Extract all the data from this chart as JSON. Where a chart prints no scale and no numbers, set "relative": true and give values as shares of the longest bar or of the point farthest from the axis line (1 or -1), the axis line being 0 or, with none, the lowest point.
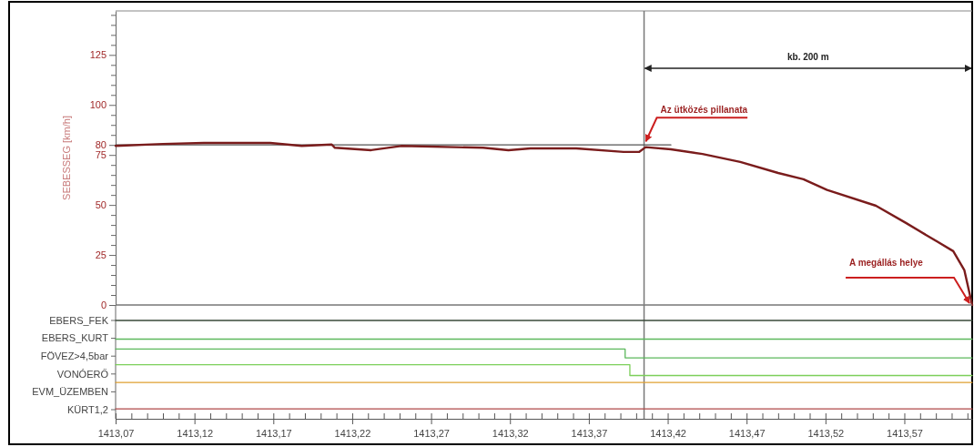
{
  "chart_data": [
    {
      "type": "line",
      "ylabel": "SEBESSEG [km/h]",
      "xlim": [
        1413.07,
        1413.613
      ],
      "ylim": [
        0,
        147
      ],
      "yticks": [
        0,
        {
          "value": 5,
          "label": null
        },
        {
          "value": 10,
          "label": null
        },
        {
          "value": 15,
          "label": null
        },
        {
          "value": 20,
          "label": null
        },
        25,
        {
          "value": 30,
          "label": null
        },
        {
          "value": 35,
          "label": null
        },
        {
          "value": 40,
          "label": null
        },
        {
          "value": 45,
          "label": null
        },
        50,
        {
          "value": 55,
          "label": null
        },
        {
          "value": 60,
          "label": null
        },
        {
          "value": 65,
          "label": null
        },
        {
          "value": 70,
          "label": null
        },
        75,
        80,
        {
          "value": 85,
          "label": null
        },
        {
          "value": 90,
          "label": null
        },
        {
          "value": 95,
          "label": null
        },
        100,
        {
          "value": 105,
          "label": null
        },
        {
          "value": 110,
          "label": null
        },
        {
          "value": 115,
          "label": null
        },
        {
          "value": 120,
          "label": null
        },
        125,
        {
          "value": 130,
          "label": null
        },
        {
          "value": 135,
          "label": null
        },
        {
          "value": 140,
          "label": null
        },
        {
          "value": 145,
          "label": null
        }
      ],
      "tick_labels": "y",
      "grid": false,
      "series": [
        {
          "color": "#555555",
          "x": [
            1413.07,
            1413.422
          ],
          "values": [
            80,
            80
          ]
        },
        {
          "color": "#7a1c1c",
          "x": [
            1413.07,
            1413.1,
            1413.126,
            1413.168,
            1413.188,
            1413.207,
            1413.209,
            1413.232,
            1413.251,
            1413.303,
            1413.319,
            1413.333,
            1413.362,
            1413.392,
            1413.402,
            1413.406,
            1413.422,
            1413.442,
            1413.466,
            1413.49,
            1413.506,
            1413.521,
            1413.552,
            1413.571,
            1413.591,
            1413.601,
            1413.608,
            1413.613
          ],
          "values": [
            79.5,
            80.5,
            81,
            81,
            79.5,
            80.2,
            78.6,
            77.4,
            79.5,
            78.6,
            77.4,
            78.3,
            78.3,
            76.5,
            76.6,
            78.9,
            77.8,
            75.5,
            71.5,
            66,
            62.9,
            57.5,
            49.6,
            41,
            31.6,
            26.9,
            17.5,
            0
          ]
        }
      ],
      "ref_lines": [
        {
          "axis": "x",
          "value": 1413.405,
          "color": "#777777"
        }
      ],
      "annotations": [
        "kb. 200 m",
        {
          "text": "Az ütközés pillanata",
          "x": 1413.405,
          "y": 80
        },
        {
          "text": "A megállás helye",
          "x": 1413.613,
          "y": 0
        }
      ]
    },
    {
      "type": "step",
      "xlim": [
        1413.07,
        1413.613
      ],
      "relative": true,
      "xticks": [
        {
          "value": 1413.07,
          "label": "1413,07"
        },
        {
          "value": 1413.08,
          "label": null
        },
        {
          "value": 1413.09,
          "label": null
        },
        {
          "value": 1413.1,
          "label": null
        },
        {
          "value": 1413.11,
          "label": null
        },
        {
          "value": 1413.12,
          "label": "1413,12"
        },
        {
          "value": 1413.13,
          "label": null
        },
        {
          "value": 1413.14,
          "label": null
        },
        {
          "value": 1413.15,
          "label": null
        },
        {
          "value": 1413.16,
          "label": null
        },
        {
          "value": 1413.17,
          "label": "1413,17"
        },
        {
          "value": 1413.18,
          "label": null
        },
        {
          "value": 1413.19,
          "label": null
        },
        {
          "value": 1413.2,
          "label": null
        },
        {
          "value": 1413.21,
          "label": null
        },
        {
          "value": 1413.22,
          "label": "1413,22"
        },
        {
          "value": 1413.23,
          "label": null
        },
        {
          "value": 1413.24,
          "label": null
        },
        {
          "value": 1413.25,
          "label": null
        },
        {
          "value": 1413.26,
          "label": null
        },
        {
          "value": 1413.27,
          "label": "1413,27"
        },
        {
          "value": 1413.28,
          "label": null
        },
        {
          "value": 1413.29,
          "label": null
        },
        {
          "value": 1413.3,
          "label": null
        },
        {
          "value": 1413.31,
          "label": null
        },
        {
          "value": 1413.32,
          "label": "1413,32"
        },
        {
          "value": 1413.33,
          "label": null
        },
        {
          "value": 1413.34,
          "label": null
        },
        {
          "value": 1413.35,
          "label": null
        },
        {
          "value": 1413.36,
          "label": null
        },
        {
          "value": 1413.37,
          "label": "1413,37"
        },
        {
          "value": 1413.38,
          "label": null
        },
        {
          "value": 1413.39,
          "label": null
        },
        {
          "value": 1413.4,
          "label": null
        },
        {
          "value": 1413.41,
          "label": null
        },
        {
          "value": 1413.42,
          "label": "1413,42"
        },
        {
          "value": 1413.43,
          "label": null
        },
        {
          "value": 1413.44,
          "label": null
        },
        {
          "value": 1413.45,
          "label": null
        },
        {
          "value": 1413.46,
          "label": null
        },
        {
          "value": 1413.47,
          "label": "1413,47"
        },
        {
          "value": 1413.48,
          "label": null
        },
        {
          "value": 1413.49,
          "label": null
        },
        {
          "value": 1413.5,
          "label": null
        },
        {
          "value": 1413.51,
          "label": null
        },
        {
          "value": 1413.52,
          "label": "1413,52"
        },
        {
          "value": 1413.53,
          "label": null
        },
        {
          "value": 1413.54,
          "label": null
        },
        {
          "value": 1413.55,
          "label": null
        },
        {
          "value": 1413.56,
          "label": null
        },
        {
          "value": 1413.57,
          "label": "1413,57"
        },
        {
          "value": 1413.58,
          "label": null
        },
        {
          "value": 1413.59,
          "label": null
        },
        {
          "value": 1413.6,
          "label": null
        },
        {
          "value": 1413.61,
          "label": null
        }
      ],
      "grid": false,
      "series": [
        {
          "name": "EBERS_FEK",
          "color": "#3a4a3a",
          "x": [
            1413.07,
            1413.613
          ],
          "values": [
            1,
            1
          ]
        },
        {
          "name": "EBERS_KURT",
          "color": "#5cb85c",
          "x": [
            1413.07,
            1413.613
          ],
          "values": [
            0.81,
            0.81
          ]
        },
        {
          "name": "FÖVEZ>4,5bar",
          "color": "#5cb85c",
          "x": [
            1413.07,
            1413.393,
            1413.613
          ],
          "values": [
            0.71,
            0.62,
            0.62
          ]
        },
        {
          "name": "VONÓERŐ",
          "color": "#7ccf5a",
          "x": [
            1413.07,
            1413.396,
            1413.613
          ],
          "values": [
            0.55,
            0.44,
            0.44
          ]
        },
        {
          "name": "EVM_ÜZEMBEN",
          "color": "#e0a030",
          "x": [
            1413.07,
            1413.613
          ],
          "values": [
            0.37,
            0.37
          ]
        },
        {
          "name": "KÜRT1,2",
          "color": "#b04848",
          "x": [
            1413.07,
            1413.613
          ],
          "values": [
            0.1,
            0.1
          ]
        }
      ],
      "ref_lines": [
        {
          "axis": "x",
          "value": 1413.405,
          "color": "#777777"
        }
      ]
    }
  ]
}
